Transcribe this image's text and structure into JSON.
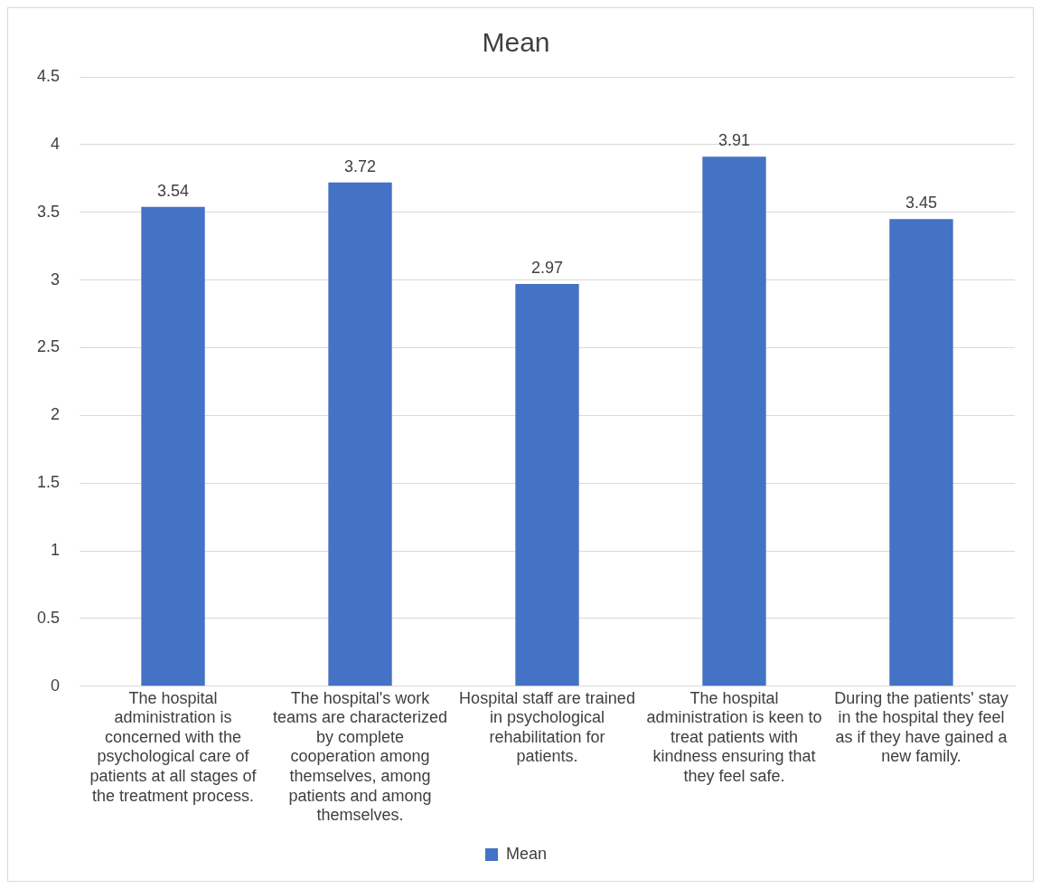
{
  "chart_data": {
    "type": "bar",
    "title": "Mean",
    "categories": [
      "The hospital administration is concerned with the psychological care of patients at all stages of the treatment process.",
      "The hospital's work teams are characterized by complete cooperation among themselves, among patients and among themselves.",
      "Hospital staff are trained in psychological rehabilitation for patients.",
      "The hospital administration is keen to treat patients with kindness ensuring that they feel safe.",
      "During the patients' stay in the hospital they feel as if they have gained a new family."
    ],
    "series": [
      {
        "name": "Mean",
        "color": "#4472c4",
        "values": [
          3.54,
          3.72,
          2.97,
          3.91,
          3.45
        ]
      }
    ],
    "ylim": [
      0,
      4.5
    ],
    "yticks": [
      0,
      0.5,
      1,
      1.5,
      2,
      2.5,
      3,
      3.5,
      4,
      4.5
    ],
    "grid": "y",
    "legend": "bottom",
    "data_labels": true
  }
}
